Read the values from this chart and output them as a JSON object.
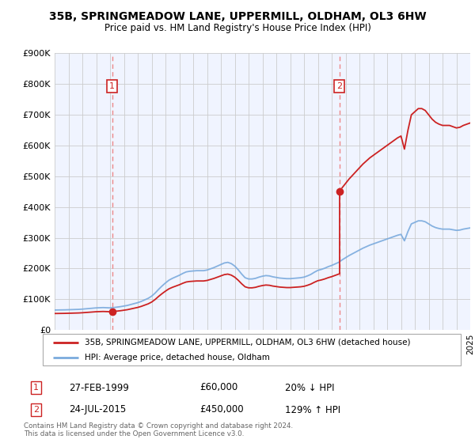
{
  "title": "35B, SPRINGMEADOW LANE, UPPERMILL, OLDHAM, OL3 6HW",
  "subtitle": "Price paid vs. HM Land Registry's House Price Index (HPI)",
  "ylim": [
    0,
    900000
  ],
  "yticks": [
    0,
    100000,
    200000,
    300000,
    400000,
    500000,
    600000,
    700000,
    800000,
    900000
  ],
  "ytick_labels": [
    "£0",
    "£100K",
    "£200K",
    "£300K",
    "£400K",
    "£500K",
    "£600K",
    "£700K",
    "£800K",
    "£900K"
  ],
  "transaction1": {
    "date_num": 1999.15,
    "price": 60000,
    "label": "1",
    "date_str": "27-FEB-1999",
    "price_str": "£60,000",
    "hpi_str": "20% ↓ HPI"
  },
  "transaction2": {
    "date_num": 2015.56,
    "price": 450000,
    "label": "2",
    "date_str": "24-JUL-2015",
    "price_str": "£450,000",
    "hpi_str": "129% ↑ HPI"
  },
  "line_color_property": "#cc2222",
  "line_color_hpi": "#7aaadd",
  "vline_color": "#ee8888",
  "background_color": "#f0f4ff",
  "grid_color": "#cccccc",
  "legend_label_property": "35B, SPRINGMEADOW LANE, UPPERMILL, OLDHAM, OL3 6HW (detached house)",
  "legend_label_hpi": "HPI: Average price, detached house, Oldham",
  "footer": "Contains HM Land Registry data © Crown copyright and database right 2024.\nThis data is licensed under the Open Government Licence v3.0.",
  "hpi_data": {
    "years": [
      1995,
      1995.25,
      1995.5,
      1995.75,
      1996,
      1996.25,
      1996.5,
      1996.75,
      1997,
      1997.25,
      1997.5,
      1997.75,
      1998,
      1998.25,
      1998.5,
      1998.75,
      1999,
      1999.25,
      1999.5,
      1999.75,
      2000,
      2000.25,
      2000.5,
      2000.75,
      2001,
      2001.25,
      2001.5,
      2001.75,
      2002,
      2002.25,
      2002.5,
      2002.75,
      2003,
      2003.25,
      2003.5,
      2003.75,
      2004,
      2004.25,
      2004.5,
      2004.75,
      2005,
      2005.25,
      2005.5,
      2005.75,
      2006,
      2006.25,
      2006.5,
      2006.75,
      2007,
      2007.25,
      2007.5,
      2007.75,
      2008,
      2008.25,
      2008.5,
      2008.75,
      2009,
      2009.25,
      2009.5,
      2009.75,
      2010,
      2010.25,
      2010.5,
      2010.75,
      2011,
      2011.25,
      2011.5,
      2011.75,
      2012,
      2012.25,
      2012.5,
      2012.75,
      2013,
      2013.25,
      2013.5,
      2013.75,
      2014,
      2014.25,
      2014.5,
      2014.75,
      2015,
      2015.25,
      2015.5,
      2015.75,
      2016,
      2016.25,
      2016.5,
      2016.75,
      2017,
      2017.25,
      2017.5,
      2017.75,
      2018,
      2018.25,
      2018.5,
      2018.75,
      2019,
      2019.25,
      2019.5,
      2019.75,
      2020,
      2020.25,
      2020.5,
      2020.75,
      2021,
      2021.25,
      2021.5,
      2021.75,
      2022,
      2022.25,
      2022.5,
      2022.75,
      2023,
      2023.25,
      2023.5,
      2023.75,
      2024,
      2024.25,
      2024.5,
      2024.75,
      2025
    ],
    "values": [
      65000,
      65200,
      65400,
      65600,
      66000,
      66400,
      66800,
      67200,
      68000,
      69000,
      70000,
      71000,
      72000,
      72500,
      73000,
      72500,
      72000,
      73000,
      74500,
      76000,
      78000,
      80000,
      83000,
      86000,
      89000,
      93000,
      98000,
      103000,
      110000,
      120000,
      132000,
      143000,
      153000,
      162000,
      168000,
      173000,
      178000,
      184000,
      189000,
      191000,
      192000,
      193000,
      193000,
      193000,
      195000,
      199000,
      203000,
      208000,
      213000,
      218000,
      220000,
      216000,
      208000,
      196000,
      182000,
      170000,
      166000,
      166000,
      168000,
      172000,
      175000,
      177000,
      176000,
      173000,
      171000,
      169000,
      168000,
      167000,
      167000,
      168000,
      169000,
      170000,
      172000,
      176000,
      181000,
      188000,
      194000,
      197000,
      201000,
      206000,
      210000,
      215000,
      220000,
      228000,
      235000,
      242000,
      248000,
      254000,
      260000,
      266000,
      271000,
      276000,
      280000,
      284000,
      288000,
      292000,
      296000,
      300000,
      304000,
      308000,
      311000,
      290000,
      320000,
      345000,
      350000,
      355000,
      355000,
      352000,
      345000,
      338000,
      333000,
      330000,
      328000,
      328000,
      328000,
      326000,
      324000,
      325000,
      328000,
      330000,
      332000
    ]
  }
}
